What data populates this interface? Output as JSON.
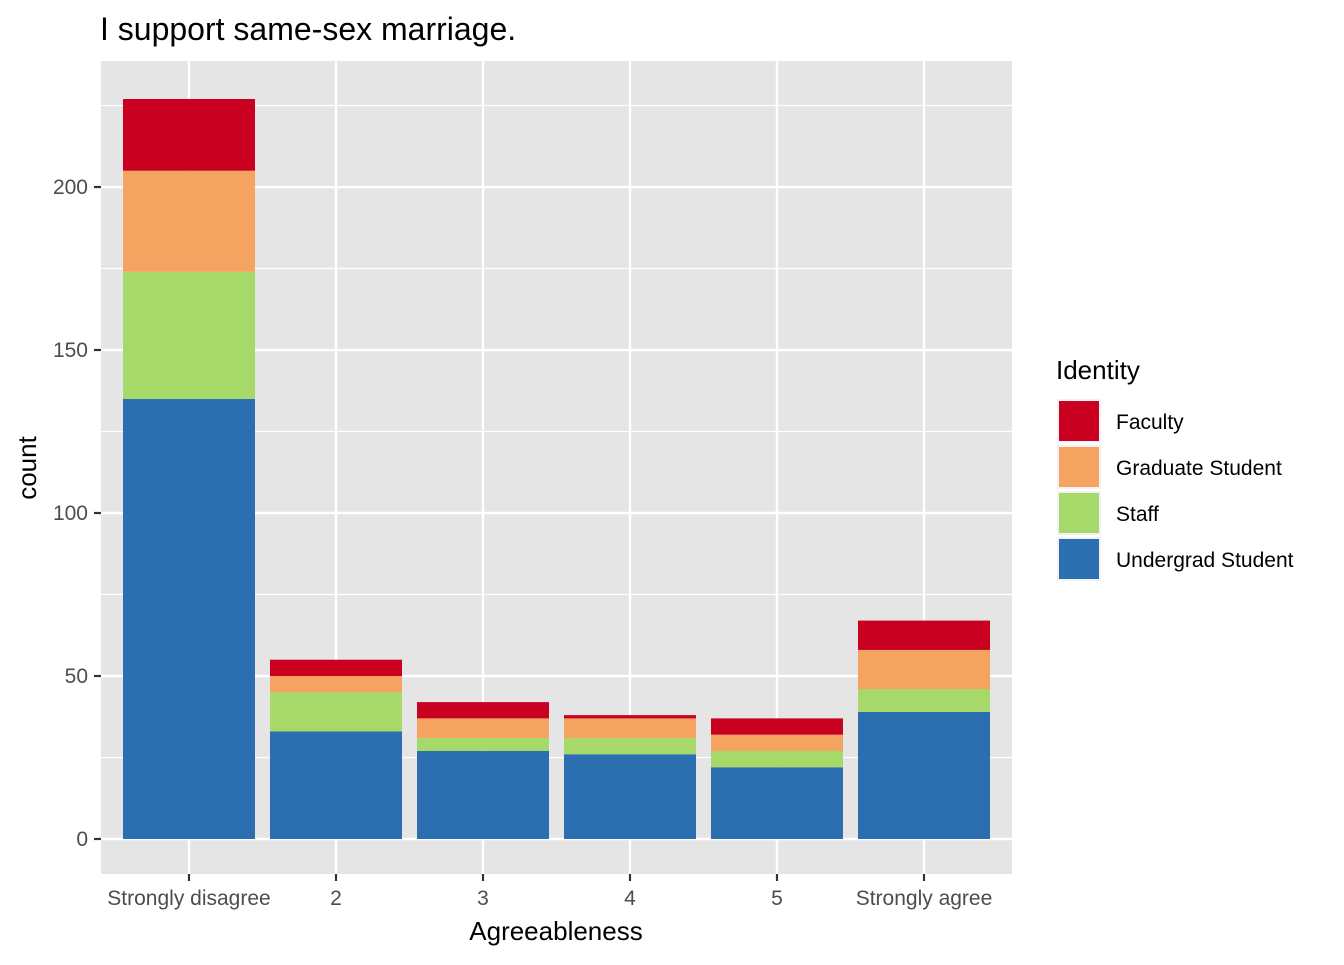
{
  "chart_data": {
    "type": "bar",
    "stacked": true,
    "title": "I support same-sex marriage.",
    "xlabel": "Agreeableness",
    "ylabel": "count",
    "categories": [
      "Strongly disagree",
      "2",
      "3",
      "4",
      "5",
      "Strongly agree"
    ],
    "ylim": [
      0,
      227
    ],
    "yticks": [
      0,
      50,
      100,
      150,
      200
    ],
    "grid": true,
    "legend": {
      "title": "Identity",
      "position": "right"
    },
    "series": [
      {
        "name": "Faculty",
        "color": "#ca0020",
        "values": [
          22,
          5,
          5,
          1,
          5,
          9
        ]
      },
      {
        "name": "Graduate Student",
        "color": "#f4a460",
        "values": [
          31,
          5,
          6,
          6,
          5,
          12
        ]
      },
      {
        "name": "Staff",
        "color": "#a6d96a",
        "values": [
          39,
          12,
          4,
          5,
          5,
          7
        ]
      },
      {
        "name": "Undergrad Student",
        "color": "#2b6fb0",
        "values": [
          135,
          33,
          27,
          26,
          22,
          39
        ]
      }
    ]
  }
}
